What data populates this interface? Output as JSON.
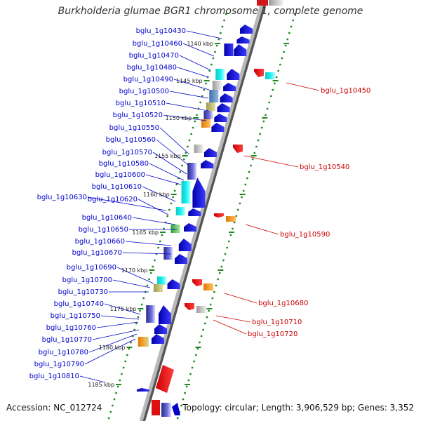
{
  "title": "Burkholderia glumae BGR1 chromosome 1, complete genome",
  "footer": {
    "accession": "Accession: NC_012724",
    "topology": "Topology: circular; Length: 3,906,529 bp; Genes: 3,352"
  },
  "colors": {
    "forward_label": "#0000cc",
    "reverse_label": "#cc0000",
    "backbone": "#888888",
    "tick_dots": "#228822",
    "forward_gene": "#0000ee",
    "reverse_gene": "#ee0000"
  },
  "scale_ticks": [
    "1140 kbp",
    "1145 kbp",
    "1150 kbp",
    "1155 kbp",
    "1160 kbp",
    "1165 kbp",
    "1170 kbp",
    "1175 kbp",
    "1180 kbp",
    "1185 kbp"
  ],
  "forward_genes": [
    "bglu_1g10430",
    "bglu_1g10460",
    "bglu_1g10470",
    "bglu_1g10480",
    "bglu_1g10490",
    "bglu_1g10500",
    "bglu_1g10510",
    "bglu_1g10520",
    "bglu_1g10550",
    "bglu_1g10560",
    "bglu_1g10570",
    "bglu_1g10580",
    "bglu_1g10600",
    "bglu_1g10610",
    "bglu_1g10630",
    "bglu_1g10620",
    "bglu_1g10640",
    "bglu_1g10650",
    "bglu_1g10660",
    "bglu_1g10670",
    "bglu_1g10690",
    "bglu_1g10700",
    "bglu_1g10730",
    "bglu_1g10740",
    "bglu_1g10750",
    "bglu_1g10760",
    "bglu_1g10770",
    "bglu_1g10780",
    "bglu_1g10790",
    "bglu_1g10810"
  ],
  "reverse_genes": [
    "bglu_1g10450",
    "bglu_1g10540",
    "bglu_1g10590",
    "bglu_1g10680",
    "bglu_1g10710",
    "bglu_1g10720"
  ]
}
